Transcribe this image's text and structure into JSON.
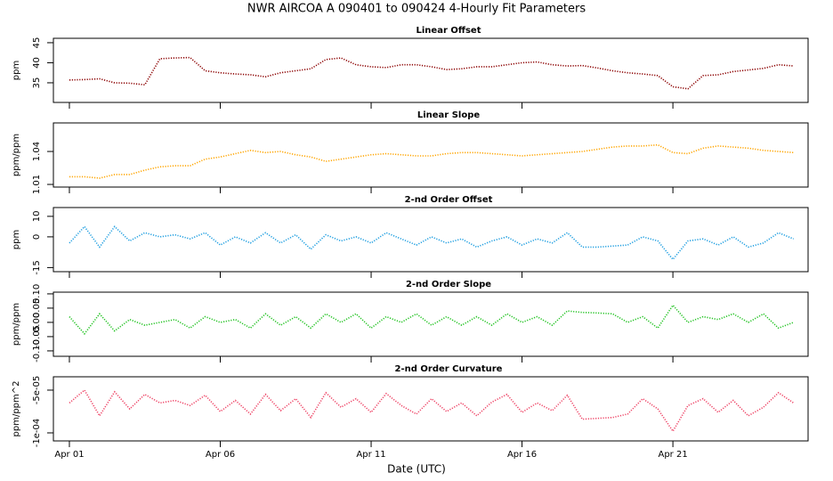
{
  "title": "NWR   AIRCOA A   090401 to 090424   4-Hourly Fit Parameters",
  "xlabel": "Date (UTC)",
  "xlim": [
    0.47,
    25.48
  ],
  "xticks": [
    {
      "value": 1,
      "label": "Apr 01"
    },
    {
      "value": 6,
      "label": "Apr 06"
    },
    {
      "value": 11,
      "label": "Apr 11"
    },
    {
      "value": 16,
      "label": "Apr 16"
    },
    {
      "value": 21,
      "label": "Apr 21"
    }
  ],
  "x": [
    1,
    1.5,
    2,
    2.5,
    3,
    3.5,
    4,
    4.5,
    5,
    5.5,
    6,
    6.5,
    7,
    7.5,
    8,
    8.5,
    9,
    9.5,
    10,
    10.5,
    11,
    11.5,
    12,
    12.5,
    13,
    13.5,
    14,
    14.5,
    15,
    15.5,
    16,
    16.5,
    17,
    17.5,
    18,
    18.5,
    19,
    19.5,
    20,
    20.5,
    21,
    21.5,
    22,
    22.5,
    23,
    23.5,
    24,
    24.5,
    25
  ],
  "chart_data": [
    {
      "type": "line",
      "title": "Linear Offset",
      "ylabel": "ppm",
      "color": "#8b0000",
      "ylim": [
        30.1,
        46.1
      ],
      "yticks": [
        35,
        40,
        45
      ],
      "values": [
        35.7,
        35.8,
        36,
        35,
        34.9,
        34.5,
        41,
        41.2,
        41.3,
        38,
        37.5,
        37.2,
        37,
        36.5,
        37.5,
        38,
        38.5,
        40.8,
        41.2,
        39.5,
        39,
        38.8,
        39.5,
        39.5,
        39,
        38.3,
        38.5,
        39,
        39,
        39.5,
        40,
        40.2,
        39.5,
        39.2,
        39.3,
        38.7,
        38,
        37.5,
        37.2,
        36.8,
        34,
        33.5,
        36.8,
        37,
        37.8,
        38.2,
        38.6,
        39.5,
        39.2
      ]
    },
    {
      "type": "line",
      "title": "Linear Slope",
      "ylabel": "ppm/ppm",
      "color": "#ffa500",
      "ylim": [
        1.0076,
        1.066
      ],
      "yticks": [
        1.01,
        1.04
      ],
      "values": [
        1.017,
        1.017,
        1.0157,
        1.019,
        1.019,
        1.023,
        1.026,
        1.027,
        1.027,
        1.033,
        1.035,
        1.038,
        1.041,
        1.039,
        1.04,
        1.037,
        1.035,
        1.031,
        1.033,
        1.035,
        1.037,
        1.038,
        1.037,
        1.036,
        1.036,
        1.038,
        1.039,
        1.039,
        1.038,
        1.037,
        1.036,
        1.037,
        1.038,
        1.039,
        1.04,
        1.042,
        1.044,
        1.045,
        1.045,
        1.046,
        1.039,
        1.038,
        1.043,
        1.045,
        1.044,
        1.043,
        1.041,
        1.04,
        1.039
      ]
    },
    {
      "type": "line",
      "title": "2-nd Order Offset",
      "ylabel": "ppm",
      "color": "#1e9ee0",
      "ylim": [
        -17,
        14.3
      ],
      "yticks": [
        10,
        0,
        -15
      ],
      "values": [
        -3,
        5,
        -5,
        5,
        -2,
        2,
        0,
        1,
        -1,
        2,
        -4,
        0,
        -3,
        2,
        -3,
        1,
        -6,
        1,
        -2,
        0,
        -3,
        2,
        -1,
        -4,
        0,
        -3,
        -1,
        -5,
        -2,
        0,
        -4,
        -1,
        -3,
        2,
        -5,
        -5,
        -4.5,
        -4,
        0,
        -2,
        -11,
        -2,
        -1,
        -4,
        0,
        -5,
        -3,
        2,
        -1
      ]
    },
    {
      "type": "line",
      "title": "2-nd Order Slope",
      "ylabel": "ppm/ppm",
      "color": "#22c322",
      "ylim": [
        -0.119,
        0.106
      ],
      "yticks": [
        {
          "value": 0.1,
          "label": "0.10"
        },
        0.05,
        {
          "value": 0,
          "label": "0.00"
        },
        -0.05,
        {
          "value": -0.1,
          "label": "-0.10"
        }
      ],
      "values": [
        0.02,
        -0.04,
        0.03,
        -0.03,
        0.01,
        -0.01,
        0,
        0.01,
        -0.02,
        0.02,
        0,
        0.01,
        -0.02,
        0.03,
        -0.01,
        0.02,
        -0.02,
        0.03,
        0,
        0.03,
        -0.02,
        0.02,
        0,
        0.03,
        -0.01,
        0.02,
        -0.01,
        0.02,
        -0.01,
        0.03,
        0,
        0.02,
        -0.01,
        0.04,
        0.035,
        0.033,
        0.03,
        0,
        0.02,
        -0.02,
        0.06,
        0,
        0.02,
        0.01,
        0.03,
        0,
        0.03,
        -0.02,
        0
      ]
    },
    {
      "type": "line",
      "title": "2-nd Order Curvature",
      "ylabel": "ppm/ppm^2",
      "color": "#ee4466",
      "ylim": [
        -0.0001094,
        -3.44e-05
      ],
      "yticks": [
        {
          "value": -5e-05,
          "label": "-5e-05"
        },
        {
          "value": -0.0001,
          "label": "-1e-04"
        }
      ],
      "values": [
        -6.5e-05,
        -5e-05,
        -8e-05,
        -5.2e-05,
        -7.2e-05,
        -5.5e-05,
        -6.5e-05,
        -6.2e-05,
        -6.8e-05,
        -5.6e-05,
        -7.5e-05,
        -6.2e-05,
        -7.8e-05,
        -5.5e-05,
        -7.4e-05,
        -6e-05,
        -8.2e-05,
        -5.3e-05,
        -7e-05,
        -6e-05,
        -7.6e-05,
        -5.4e-05,
        -6.8e-05,
        -7.8e-05,
        -6e-05,
        -7.5e-05,
        -6.5e-05,
        -8e-05,
        -6.4e-05,
        -5.5e-05,
        -7.6e-05,
        -6.5e-05,
        -7.4e-05,
        -5.6e-05,
        -8.4e-05,
        -8.3e-05,
        -8.2e-05,
        -7.8e-05,
        -6e-05,
        -7.2e-05,
        -9.8e-05,
        -6.8e-05,
        -6e-05,
        -7.6e-05,
        -6.2e-05,
        -8e-05,
        -7e-05,
        -5.3e-05,
        -6.5e-05
      ]
    }
  ]
}
